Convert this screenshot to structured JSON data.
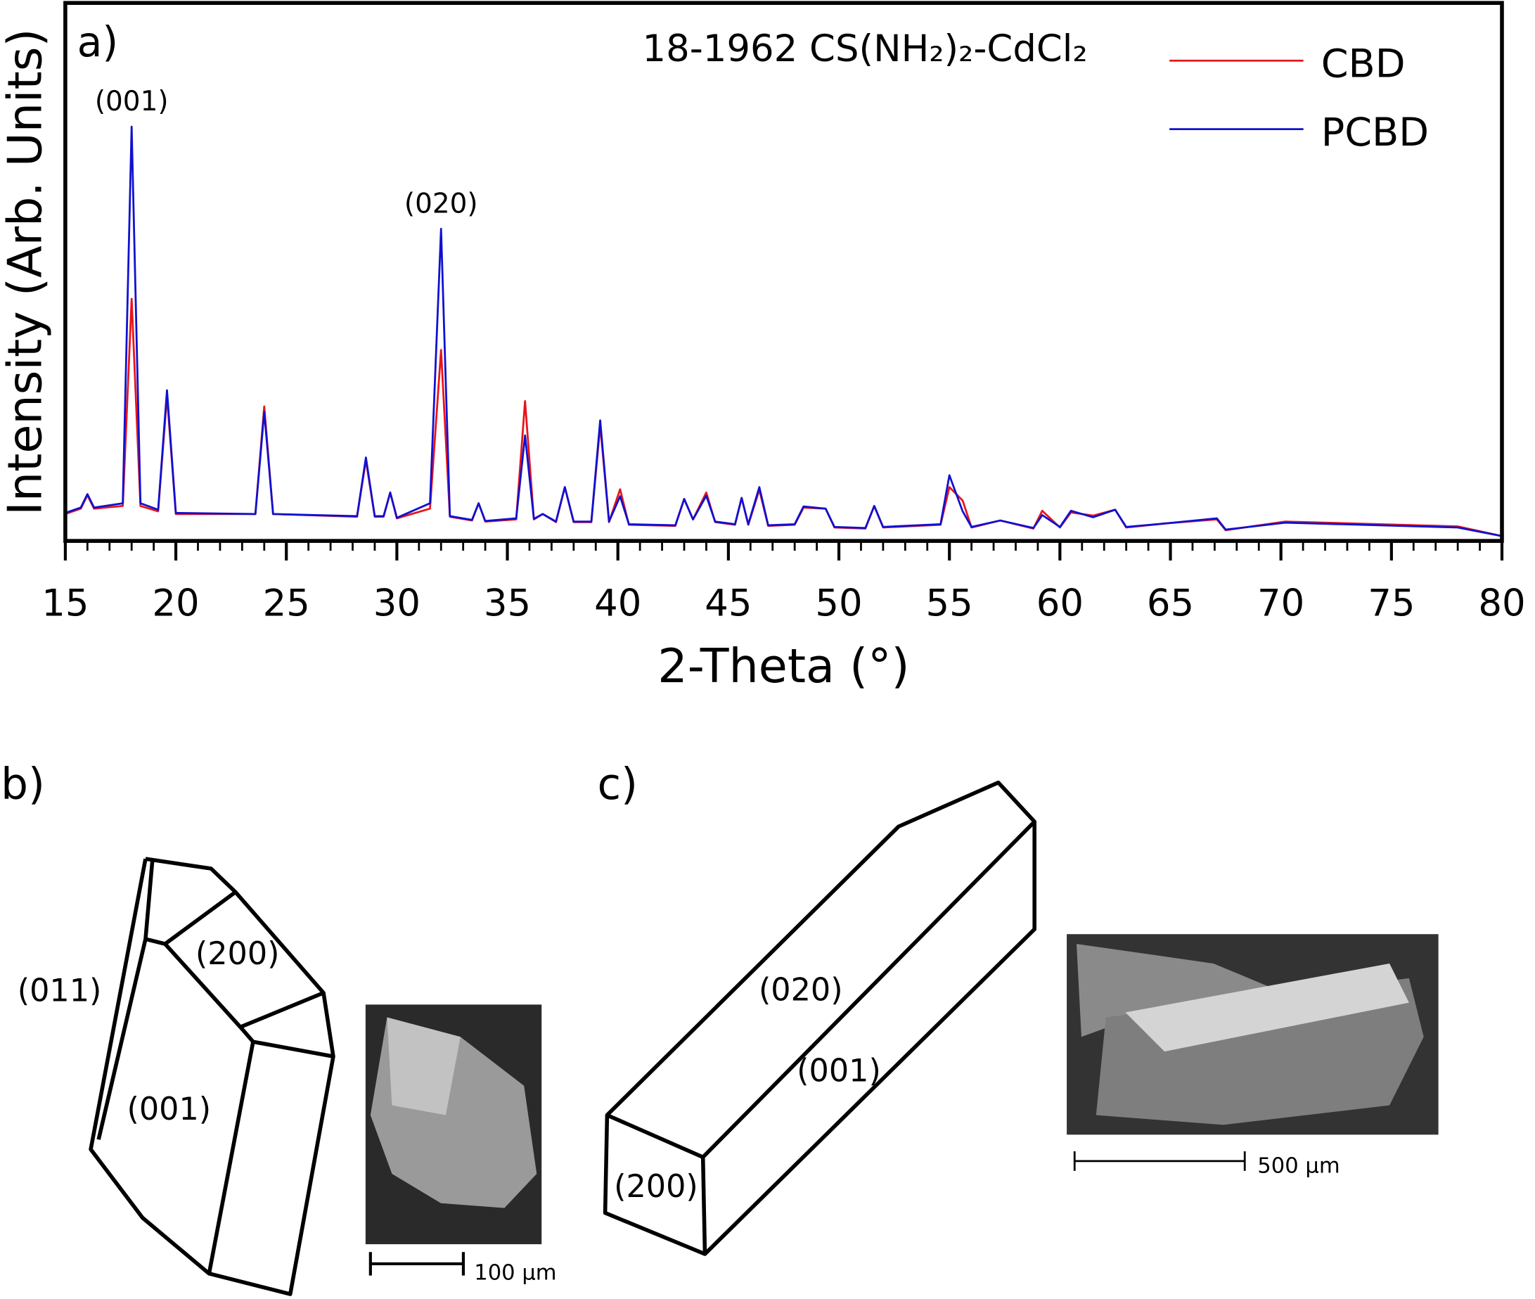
{
  "chart_data": {
    "type": "line",
    "panel": "a)",
    "title": "18-1962 CS(NH₂)₂-CdCl₂",
    "xlabel": "2-Theta (°)",
    "ylabel": "Intensity (Arb. Units)",
    "annotations": [
      {
        "text": "(001)",
        "x": 18.0
      },
      {
        "text": "(020)",
        "x": 32.0
      }
    ],
    "xlim": [
      15,
      80
    ],
    "xticks": [
      15,
      20,
      25,
      30,
      35,
      40,
      45,
      50,
      55,
      60,
      65,
      70,
      75,
      80
    ],
    "xminor_step": 1,
    "ylim": [
      0,
      100
    ],
    "legend": "upper right",
    "x": [
      15,
      15.7,
      16.0,
      16.3,
      17.6,
      18.0,
      18.4,
      19.2,
      19.6,
      20.0,
      23.6,
      24.0,
      24.4,
      28.2,
      28.6,
      29.0,
      29.4,
      29.7,
      30.0,
      31.5,
      32.0,
      32.4,
      33.4,
      33.7,
      34.0,
      35.4,
      35.8,
      36.2,
      36.6,
      37.2,
      37.6,
      38.0,
      38.8,
      39.2,
      39.6,
      40.1,
      40.5,
      42.6,
      43.0,
      43.4,
      44.0,
      44.4,
      45.3,
      45.6,
      45.9,
      46.4,
      46.8,
      48.0,
      48.4,
      49.4,
      49.8,
      51.2,
      51.6,
      52.0,
      54.6,
      55.0,
      55.6,
      56.0,
      57.3,
      58.8,
      59.2,
      60.0,
      60.5,
      61.5,
      62.5,
      63.0,
      64.9,
      67.1,
      67.5,
      70.2,
      78.0,
      80
    ],
    "series": [
      {
        "name": "CBD",
        "color": "#e8151b",
        "values": [
          5,
          6,
          8.5,
          6,
          6.5,
          45,
          6.5,
          5.5,
          27,
          5,
          5,
          25,
          5,
          4.5,
          15,
          4.5,
          4.5,
          9,
          4.2,
          6,
          35.5,
          4.5,
          3.8,
          7,
          3.6,
          4,
          26,
          4,
          5,
          3.5,
          10,
          3.5,
          3.5,
          21.5,
          3.5,
          9.6,
          3,
          2.8,
          7.8,
          4,
          9,
          3.5,
          3,
          8,
          3,
          9.5,
          2.8,
          3,
          6.2,
          6,
          2.5,
          2.3,
          6.5,
          2.5,
          3,
          10,
          7.5,
          2.5,
          3.8,
          2.3,
          5.6,
          2.5,
          5.3,
          4.7,
          5.8,
          2.5,
          3.3,
          4,
          2,
          3.6,
          2.7,
          0.9
        ]
      },
      {
        "name": "PCBD",
        "color": "#1010d0",
        "values": [
          5.2,
          6.2,
          8.7,
          6.2,
          7,
          77,
          7,
          5.8,
          28,
          5.2,
          5,
          24,
          5,
          4.6,
          15.5,
          4.6,
          4.6,
          9,
          4.3,
          7,
          58,
          4.6,
          3.9,
          7,
          3.7,
          4.2,
          19.6,
          4.1,
          5,
          3.6,
          10,
          3.6,
          3.6,
          22.4,
          3.6,
          8.3,
          3.1,
          2.9,
          7.8,
          4,
          8.4,
          3.6,
          3.1,
          8,
          3.1,
          10,
          2.9,
          3.1,
          6.4,
          6,
          2.6,
          2.4,
          6.5,
          2.6,
          3.1,
          12.2,
          5.5,
          2.6,
          3.8,
          2.4,
          4.8,
          2.6,
          5.6,
          4.4,
          5.8,
          2.6,
          3.3,
          4.2,
          2.1,
          3.4,
          2.5,
          0.9
        ]
      }
    ]
  },
  "diagrams": {
    "b": {
      "label": "b)",
      "faces": [
        "(200)",
        "(011)",
        "(001)"
      ],
      "scale": "100 μm"
    },
    "c": {
      "label": "c)",
      "faces": [
        "(020)",
        "(001)",
        "(200)"
      ],
      "scale": "500  μm"
    }
  }
}
